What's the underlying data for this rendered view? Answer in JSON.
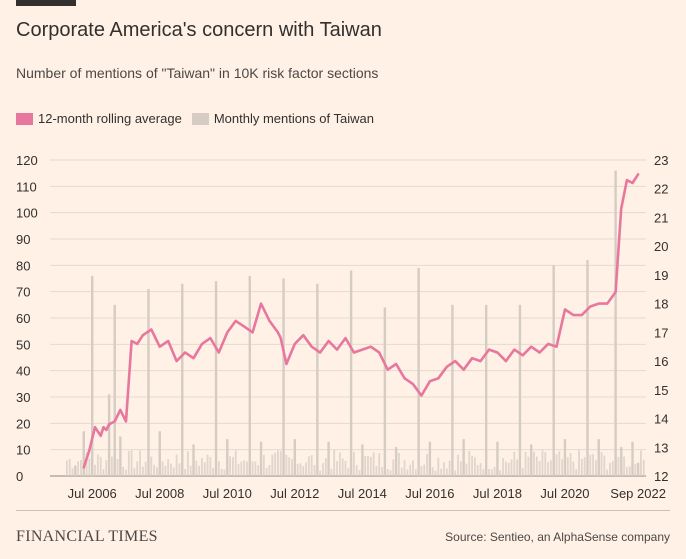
{
  "title": "Corporate America's concern with Taiwan",
  "subtitle": "Number of mentions of \"Taiwan\" in 10K risk factor sections",
  "legend": {
    "rolling_label": "12-month rolling average",
    "monthly_label": "Monthly mentions of Taiwan"
  },
  "colors": {
    "background": "#fff1e5",
    "rolling": "#e8779e",
    "monthly": "#d5ccc4",
    "grid": "#e6d9ce",
    "text": "#33302e"
  },
  "footer": {
    "brand": "FINANCIAL TIMES",
    "source": "Source: Sentieo, an AlphaSense company"
  },
  "chart_data": {
    "type": "bar",
    "title": "Corporate America's concern with Taiwan",
    "subtitle": "Number of mentions of \"Taiwan\" in 10K risk factor sections",
    "grid": true,
    "legend_position": "top-left",
    "x_ticks": [
      "Jul 2006",
      "Jul 2008",
      "Jul 2010",
      "Jul 2012",
      "Jul 2014",
      "Jul 2016",
      "Jul 2018",
      "Jul 2020",
      "Sep 2022"
    ],
    "y_left": {
      "lim": [
        0,
        120
      ],
      "ticks": [
        0,
        10,
        20,
        30,
        40,
        50,
        60,
        70,
        80,
        90,
        100,
        110,
        120
      ]
    },
    "y_right": {
      "lim": [
        12,
        23
      ],
      "ticks": [
        12,
        13,
        14,
        15,
        16,
        17,
        18,
        19,
        20,
        21,
        22,
        23
      ]
    },
    "series": [
      {
        "name": "Monthly mentions of Taiwan",
        "type": "bar",
        "axis": "left",
        "x": [
          "2006-01",
          "2006-04",
          "2006-07",
          "2007-01",
          "2007-03",
          "2007-05",
          "2008-03",
          "2008-07",
          "2009-03",
          "2009-07",
          "2010-03",
          "2010-07",
          "2011-03",
          "2011-07",
          "2012-03",
          "2012-07",
          "2013-03",
          "2013-07",
          "2014-03",
          "2014-07",
          "2015-03",
          "2015-07",
          "2016-03",
          "2016-07",
          "2017-03",
          "2017-07",
          "2018-03",
          "2018-07",
          "2019-03",
          "2019-07",
          "2020-03",
          "2020-07",
          "2021-03",
          "2021-07",
          "2022-01",
          "2022-03",
          "2022-07",
          "2022-09"
        ],
        "values": [
          4,
          17,
          76,
          31,
          65,
          15,
          71,
          17,
          73,
          12,
          74,
          14,
          76,
          13,
          75,
          14,
          73,
          13,
          78,
          12,
          64,
          11,
          79,
          13,
          65,
          14,
          65,
          13,
          65,
          12,
          80,
          14,
          82,
          14,
          116,
          11,
          13,
          5
        ]
      },
      {
        "name": "12-month rolling average",
        "type": "line",
        "axis": "right",
        "x": [
          "2006-04",
          "2006-06",
          "2006-08",
          "2006-10",
          "2006-11",
          "2006-12",
          "2007-01",
          "2007-03",
          "2007-05",
          "2007-07",
          "2007-09",
          "2007-11",
          "2008-01",
          "2008-04",
          "2008-07",
          "2008-10",
          "2009-01",
          "2009-04",
          "2009-07",
          "2009-10",
          "2010-01",
          "2010-04",
          "2010-07",
          "2010-10",
          "2011-01",
          "2011-04",
          "2011-07",
          "2011-10",
          "2012-01",
          "2012-02",
          "2012-04",
          "2012-07",
          "2012-10",
          "2013-01",
          "2013-04",
          "2013-07",
          "2013-10",
          "2014-01",
          "2014-04",
          "2014-07",
          "2014-10",
          "2015-01",
          "2015-04",
          "2015-07",
          "2015-10",
          "2016-01",
          "2016-04",
          "2016-07",
          "2016-10",
          "2017-01",
          "2017-04",
          "2017-07",
          "2017-10",
          "2018-01",
          "2018-04",
          "2018-07",
          "2018-10",
          "2019-01",
          "2019-04",
          "2019-07",
          "2019-10",
          "2020-01",
          "2020-04",
          "2020-07",
          "2020-10",
          "2021-01",
          "2021-04",
          "2021-07",
          "2021-10",
          "2022-01",
          "2022-03",
          "2022-05",
          "2022-07",
          "2022-09"
        ],
        "values": [
          12.3,
          12.9,
          13.7,
          13.4,
          13.7,
          13.6,
          13.8,
          13.9,
          14.3,
          13.9,
          16.7,
          16.6,
          16.9,
          17.1,
          16.5,
          16.7,
          16.0,
          16.3,
          16.1,
          16.6,
          16.8,
          16.3,
          17.0,
          17.4,
          17.2,
          17.0,
          18.0,
          17.4,
          17.0,
          16.8,
          15.9,
          16.6,
          16.9,
          16.5,
          16.3,
          16.7,
          16.4,
          16.8,
          16.3,
          16.4,
          16.5,
          16.3,
          15.7,
          15.9,
          15.4,
          15.2,
          14.8,
          15.3,
          15.4,
          15.8,
          16.0,
          15.7,
          16.1,
          16.0,
          16.4,
          16.3,
          16.0,
          16.4,
          16.2,
          16.5,
          16.3,
          16.6,
          16.5,
          17.8,
          17.6,
          17.6,
          17.9,
          18.0,
          18.0,
          18.4,
          21.3,
          22.3,
          22.2,
          22.5
        ]
      }
    ]
  }
}
